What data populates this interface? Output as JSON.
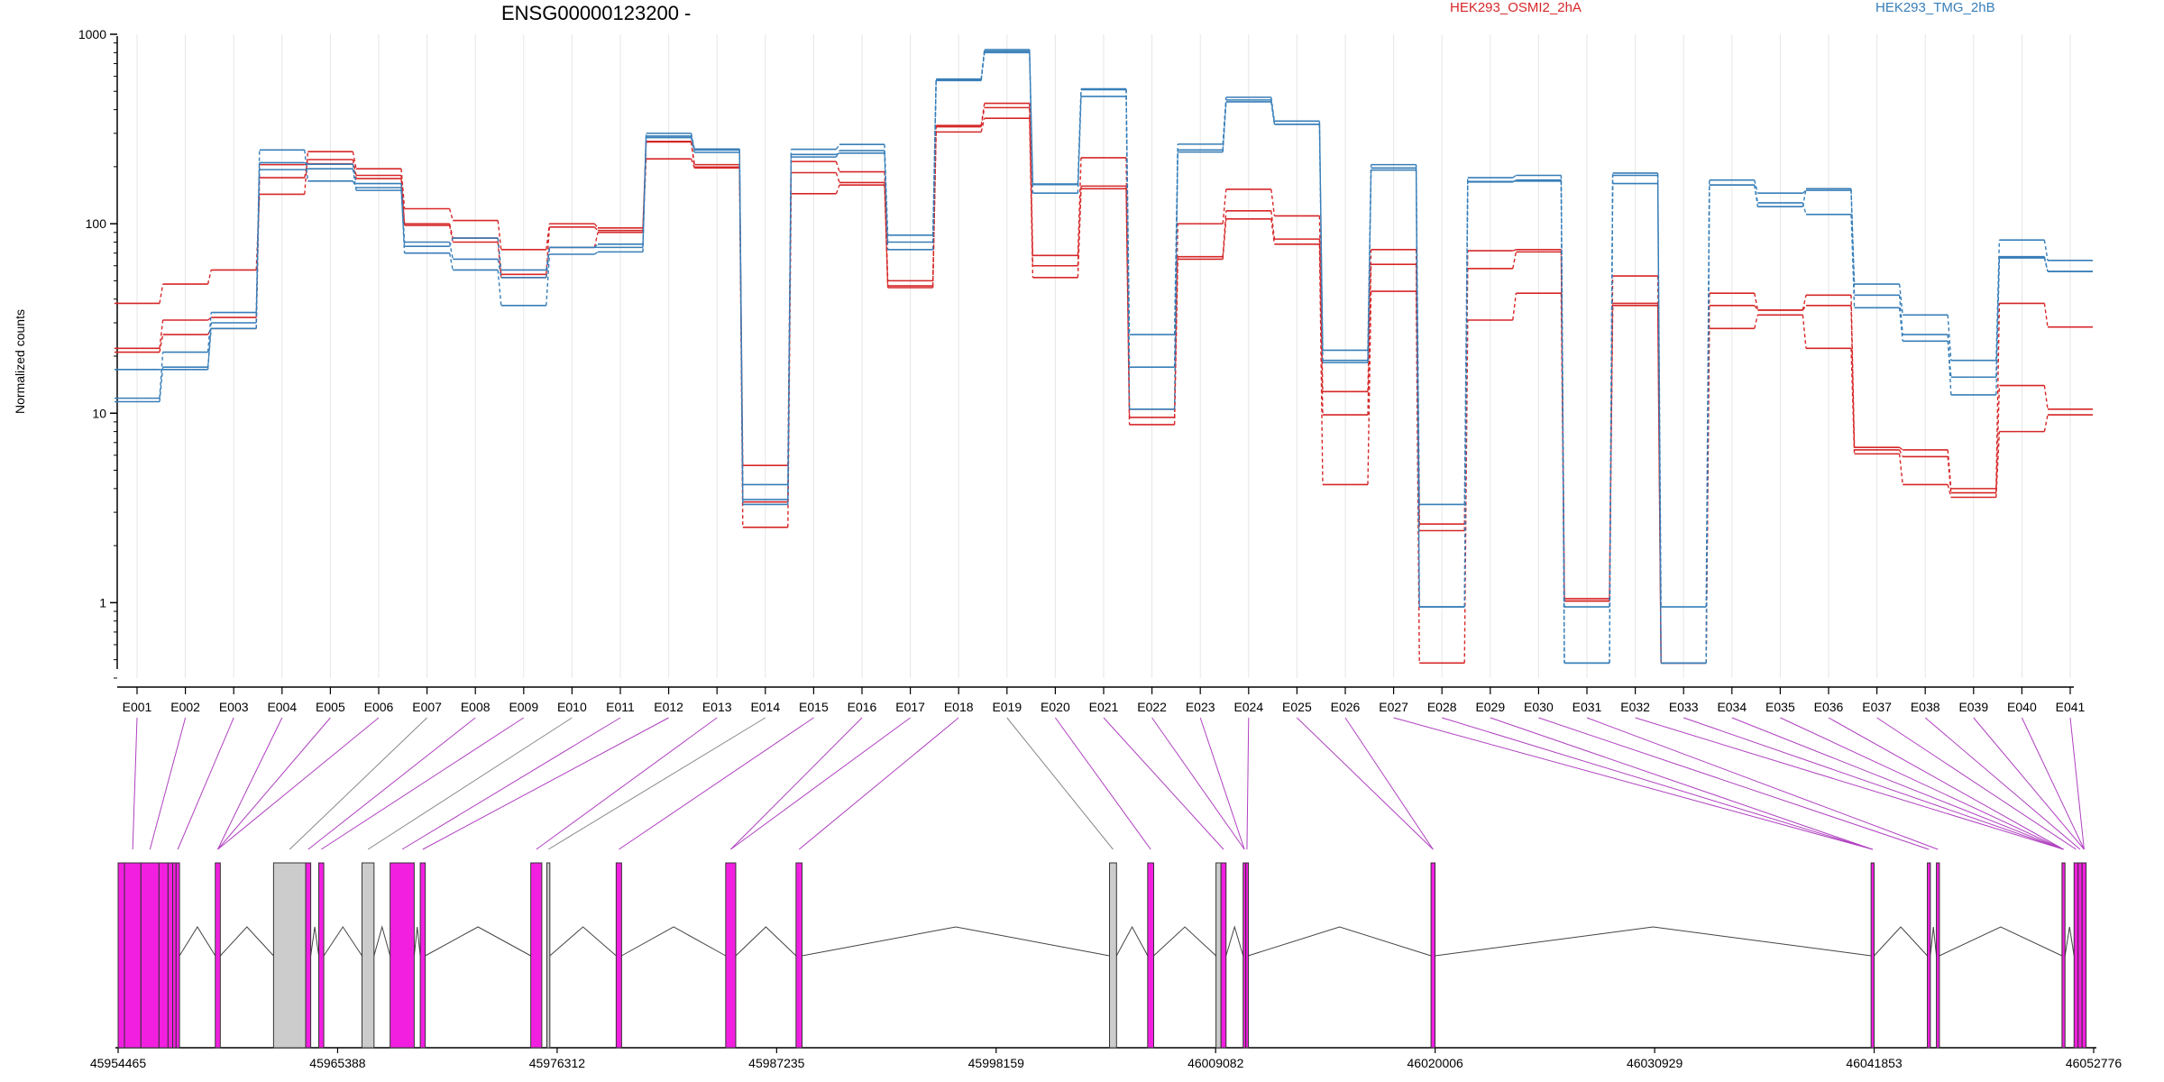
{
  "header": {
    "title": "ENSG00000123200 -",
    "legend": [
      "HEK293_OSMI2_2hA",
      "HEK293_TMG_2hB"
    ]
  },
  "colors": {
    "red": "#d62728",
    "blue": "#377eb8",
    "exon": "#f21fe0",
    "nonexon": "#cccccc",
    "link": "#b040c0"
  },
  "chart_data": [
    {
      "type": "line",
      "title": "ENSG00000123200 -",
      "ylabel": "Normalized counts",
      "yscale": "log",
      "ylim": [
        0.4,
        1000
      ],
      "yticks": [
        "1000",
        "100",
        "10",
        "1"
      ],
      "categories": [
        "E001",
        "E002",
        "E003",
        "E004",
        "E005",
        "E006",
        "E007",
        "E008",
        "E009",
        "E010",
        "E011",
        "E012",
        "E013",
        "E014",
        "E015",
        "E016",
        "E017",
        "E018",
        "E019",
        "E020",
        "E021",
        "E022",
        "E023",
        "E024",
        "E025",
        "E026",
        "E027",
        "E028",
        "E029",
        "E030",
        "E031",
        "E032",
        "E033",
        "E034",
        "E035",
        "E036",
        "E037",
        "E038",
        "E039",
        "E040",
        "E041"
      ],
      "series": [
        {
          "name": "HEK293_OSMI2_2hA",
          "color": "#d62728",
          "values": [
            38,
            48,
            57,
            143,
            240,
            195,
            120,
            104,
            73,
            100,
            95,
            272,
            205,
            5.3,
            213,
            188,
            50,
            330,
            432,
            68,
            223,
            10.5,
            100,
            152,
            110,
            13,
            73,
            2.6,
            72,
            73,
            1.05,
            53,
            0.48,
            43,
            35,
            42,
            6.6,
            6.4,
            4,
            38,
            28.5
          ]
        },
        {
          "name": "HEK293_OSMI2_2hA",
          "color": "#d62728",
          "values": [
            22,
            31,
            32,
            175,
            218,
            180,
            100,
            84,
            54,
            96,
            92,
            270,
            199,
            3.4,
            186,
            165,
            47,
            325,
            410,
            60,
            158,
            9.5,
            67,
            117,
            83,
            9.8,
            61,
            2.4,
            58,
            71,
            1.02,
            38,
            0.48,
            37,
            35,
            37,
            6.4,
            5.9,
            3.8,
            14,
            10.5
          ]
        },
        {
          "name": "HEK293_OSMI2_2hA",
          "color": "#d62728",
          "values": [
            21,
            26,
            28,
            205,
            207,
            173,
            98,
            80,
            52,
            75,
            90,
            220,
            197,
            2.5,
            144,
            160,
            46,
            305,
            360,
            52,
            153,
            8.7,
            65,
            106,
            78,
            4.2,
            44,
            0.48,
            31,
            43,
            1.02,
            37,
            0.48,
            28,
            33,
            22,
            6.1,
            4.2,
            3.6,
            8,
            9.8
          ]
        },
        {
          "name": "HEK293_TMG_2hB",
          "color": "#377eb8",
          "values": [
            12,
            21,
            34,
            245,
            168,
            155,
            70,
            57,
            37,
            69,
            71,
            300,
            248,
            4.2,
            247,
            262,
            87,
            580,
            830,
            162,
            515,
            26,
            263,
            465,
            348,
            21.5,
            205,
            3.3,
            175,
            180,
            0.95,
            185,
            0.95,
            170,
            145,
            150,
            48,
            33,
            19,
            82,
            64
          ]
        },
        {
          "name": "HEK293_TMG_2hB",
          "color": "#377eb8",
          "values": [
            17,
            17,
            30,
            210,
            206,
            163,
            80,
            65,
            52,
            75,
            75,
            290,
            245,
            3.5,
            225,
            243,
            80,
            575,
            815,
            145,
            470,
            17.5,
            239,
            440,
            335,
            19,
            192,
            0.95,
            167,
            168,
            0.48,
            163,
            0.48,
            160,
            129,
            112,
            36,
            24,
            15.5,
            67,
            56
          ]
        },
        {
          "name": "HEK293_TMG_2hB",
          "color": "#377eb8",
          "values": [
            11.5,
            17.5,
            28,
            193,
            195,
            150,
            76,
            84,
            57,
            75,
            78,
            285,
            238,
            3.3,
            232,
            236,
            73,
            570,
            800,
            161,
            510,
            10.5,
            245,
            450,
            335,
            18.5,
            197,
            0.95,
            166,
            170,
            0.48,
            180,
            0.48,
            160,
            123,
            153,
            42,
            26,
            12.5,
            66,
            56
          ]
        }
      ]
    }
  ],
  "gene_model": {
    "coordinates": [
      "45954465",
      "45965388",
      "45976312",
      "45987235",
      "45998159",
      "46009082",
      "46020006",
      "46030929",
      "46041853",
      "46052776"
    ],
    "range": [
      45954465,
      46052776
    ],
    "exons": [
      {
        "id": "E001",
        "start": 45954465,
        "end": 45954780,
        "kind": "exon"
      },
      {
        "id": "E002",
        "start": 45954780,
        "end": 45955600,
        "kind": "exon"
      },
      {
        "id": "E003",
        "start": 45955600,
        "end": 45956500,
        "kind": "exon"
      },
      {
        "id": "E004",
        "start": 45956500,
        "end": 45956950,
        "kind": "exon"
      },
      {
        "id": "E005",
        "start": 45956950,
        "end": 45957180,
        "kind": "exon"
      },
      {
        "id": "E006",
        "start": 45957180,
        "end": 45957350,
        "kind": "exon"
      },
      {
        "id": "E007",
        "start": 45957350,
        "end": 45957520,
        "kind": "exon"
      },
      {
        "id": "E008",
        "start": 45959300,
        "end": 45959550,
        "kind": "exon"
      },
      {
        "id": "E009",
        "start": 45962200,
        "end": 45963800,
        "kind": "nonexon"
      },
      {
        "id": "E010",
        "start": 45963800,
        "end": 45964050,
        "kind": "exon"
      },
      {
        "id": "E011",
        "start": 45964450,
        "end": 45964700,
        "kind": "exon"
      },
      {
        "id": "E012",
        "start": 45966600,
        "end": 45967200,
        "kind": "nonexon"
      },
      {
        "id": "E013",
        "start": 45968000,
        "end": 45969200,
        "kind": "exon"
      },
      {
        "id": "E014",
        "start": 45969500,
        "end": 45969750,
        "kind": "exon"
      },
      {
        "id": "E015",
        "start": 45975000,
        "end": 45975550,
        "kind": "exon"
      },
      {
        "id": "E016",
        "start": 45975800,
        "end": 45975950,
        "kind": "nonexon"
      },
      {
        "id": "E017",
        "start": 45979250,
        "end": 45979520,
        "kind": "exon"
      },
      {
        "id": "E018",
        "start": 45984700,
        "end": 45985200,
        "kind": "exon"
      },
      {
        "id": "E019",
        "start": 45988200,
        "end": 45988500,
        "kind": "exon"
      },
      {
        "id": "E020",
        "start": 46003800,
        "end": 46004150,
        "kind": "nonexon"
      },
      {
        "id": "E021",
        "start": 46005700,
        "end": 46006000,
        "kind": "exon"
      },
      {
        "id": "E022",
        "start": 46009100,
        "end": 46009350,
        "kind": "nonexon"
      },
      {
        "id": "E023",
        "start": 46009350,
        "end": 46009600,
        "kind": "exon"
      },
      {
        "id": "E024",
        "start": 46010450,
        "end": 46010580,
        "kind": "exon"
      },
      {
        "id": "E025",
        "start": 46010580,
        "end": 46010700,
        "kind": "exon"
      },
      {
        "id": "E026",
        "start": 46019800,
        "end": 46020000,
        "kind": "exon"
      },
      {
        "id": "E027",
        "start": 46041700,
        "end": 46041850,
        "kind": "exon"
      },
      {
        "id": "E028",
        "start": 46044500,
        "end": 46044650,
        "kind": "exon"
      },
      {
        "id": "E029",
        "start": 46044950,
        "end": 46045100,
        "kind": "exon"
      },
      {
        "id": "E030",
        "start": 46051200,
        "end": 46051350,
        "kind": "exon"
      },
      {
        "id": "E031",
        "start": 46051800,
        "end": 46052000,
        "kind": "exon"
      },
      {
        "id": "E032",
        "start": 46052000,
        "end": 46052200,
        "kind": "exon"
      },
      {
        "id": "E033",
        "start": 46052200,
        "end": 46052400,
        "kind": "exon"
      }
    ],
    "link_targets": [
      1,
      2,
      6,
      7,
      7,
      7,
      8,
      9,
      10,
      11,
      12,
      13,
      14,
      15,
      16,
      17,
      17,
      18,
      19,
      20,
      22,
      23,
      23,
      24,
      25,
      25,
      26,
      26,
      26,
      27,
      28,
      29,
      29,
      29,
      29,
      29,
      30,
      31,
      32,
      32,
      33
    ]
  }
}
